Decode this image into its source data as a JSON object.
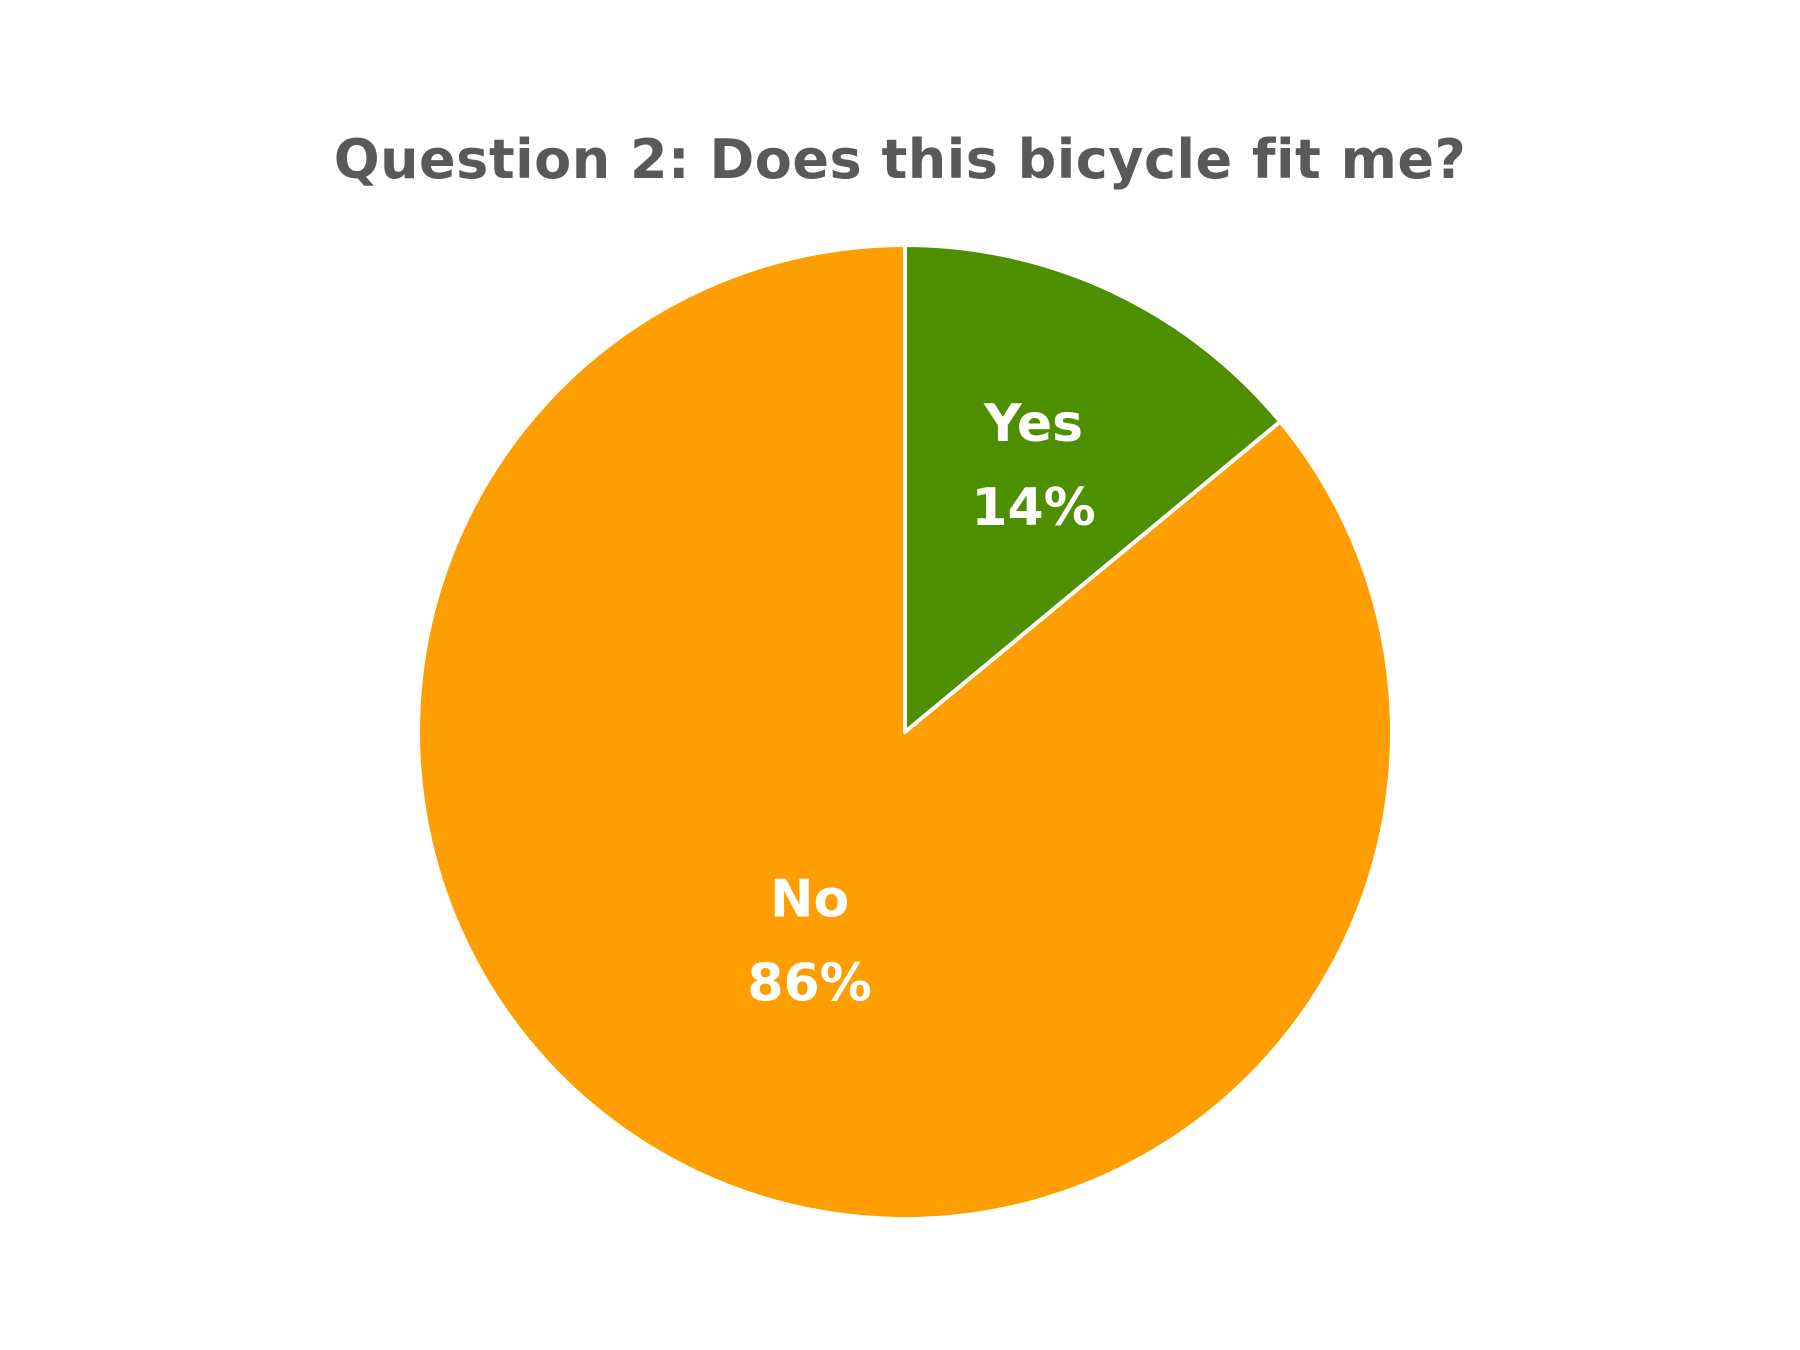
{
  "chart_data": {
    "type": "pie",
    "title": "Question 2: Does this bicycle fit me?",
    "categories": [
      "Yes",
      "No"
    ],
    "values": [
      14,
      86
    ],
    "data_labels": [
      "14%",
      "86%"
    ],
    "colors": [
      "#4E8F00",
      "#FF9E00"
    ],
    "start_angle": "12 o'clock",
    "direction": "clockwise",
    "legend": "none"
  }
}
